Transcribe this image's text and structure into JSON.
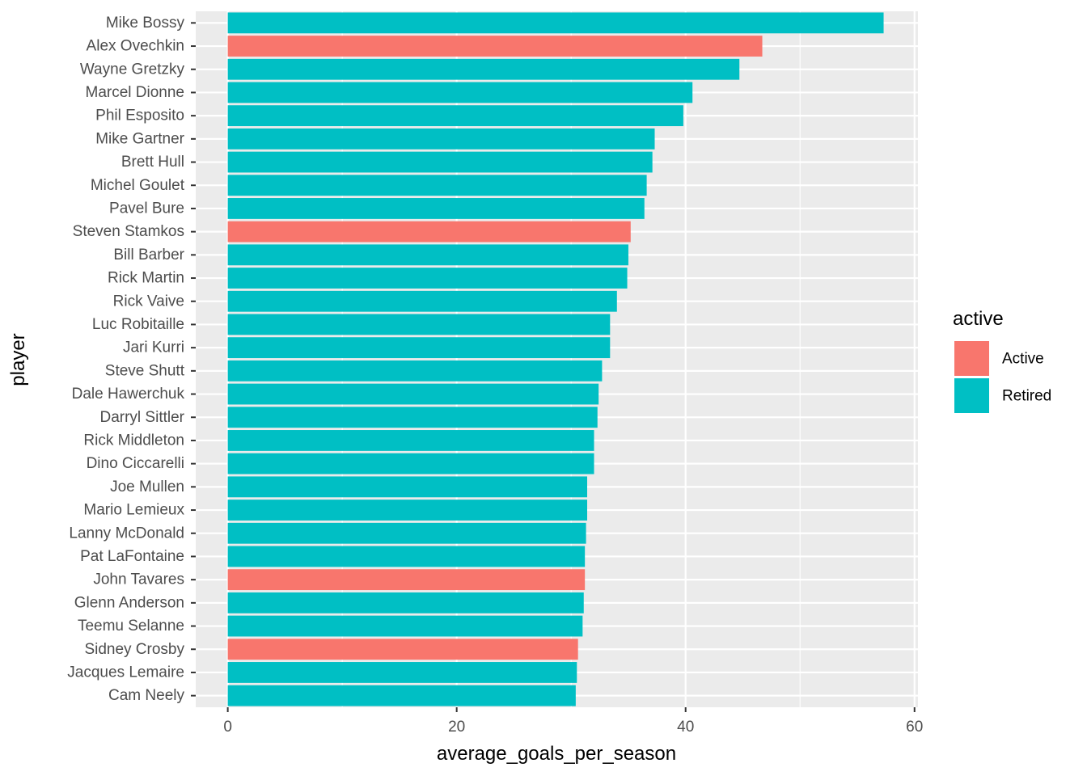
{
  "chart_data": {
    "type": "bar",
    "orientation": "horizontal",
    "title": "",
    "xlabel": "average_goals_per_season",
    "ylabel": "player",
    "xlim": [
      -2.8,
      60.3
    ],
    "xticks": [
      0,
      20,
      40,
      60
    ],
    "grid": true,
    "legend": {
      "title": "active",
      "placement": "right",
      "entries": [
        {
          "name": "Active",
          "color": "#F8766D"
        },
        {
          "name": "Retired",
          "color": "#00BFC4"
        }
      ]
    },
    "colors": {
      "Active": "#F8766D",
      "Retired": "#00BFC4"
    },
    "categories": [
      "Mike Bossy",
      "Alex Ovechkin",
      "Wayne Gretzky",
      "Marcel Dionne",
      "Phil Esposito",
      "Mike Gartner",
      "Brett Hull",
      "Michel Goulet",
      "Pavel Bure",
      "Steven Stamkos",
      "Bill Barber",
      "Rick Martin",
      "Rick Vaive",
      "Luc Robitaille",
      "Jari Kurri",
      "Steve Shutt",
      "Dale Hawerchuk",
      "Darryl Sittler",
      "Rick Middleton",
      "Dino Ciccarelli",
      "Joe Mullen",
      "Mario Lemieux",
      "Lanny McDonald",
      "Pat LaFontaine",
      "John Tavares",
      "Glenn Anderson",
      "Teemu Selanne",
      "Sidney Crosby",
      "Jacques Lemaire",
      "Cam Neely"
    ],
    "values": [
      57.3,
      46.7,
      44.7,
      40.6,
      39.8,
      37.3,
      37.1,
      36.6,
      36.4,
      35.2,
      35.0,
      34.9,
      34.0,
      33.4,
      33.4,
      32.7,
      32.4,
      32.3,
      32.0,
      32.0,
      31.4,
      31.4,
      31.3,
      31.2,
      31.2,
      31.1,
      31.0,
      30.6,
      30.5,
      30.4
    ],
    "status": [
      "Retired",
      "Active",
      "Retired",
      "Retired",
      "Retired",
      "Retired",
      "Retired",
      "Retired",
      "Retired",
      "Active",
      "Retired",
      "Retired",
      "Retired",
      "Retired",
      "Retired",
      "Retired",
      "Retired",
      "Retired",
      "Retired",
      "Retired",
      "Retired",
      "Retired",
      "Retired",
      "Retired",
      "Active",
      "Retired",
      "Retired",
      "Active",
      "Retired",
      "Retired"
    ]
  }
}
